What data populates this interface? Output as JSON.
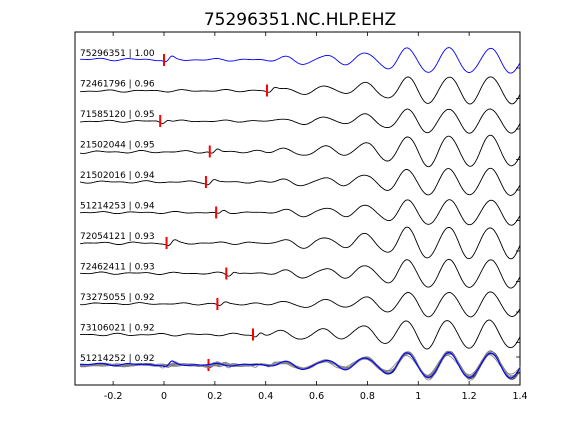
{
  "chart_data": {
    "type": "line",
    "title": "75296351.NC.HLP.EHZ",
    "xlabel": "",
    "ylabel": "",
    "xlim": [
      -0.35,
      1.4
    ],
    "xticks": [
      -0.2,
      0,
      0.2,
      0.4,
      0.6,
      0.8,
      1,
      1.2,
      1.4
    ],
    "xtick_labels": [
      "-0.2",
      "0",
      "0.2",
      "0.4",
      "0.6",
      "0.8",
      "1",
      "1.2",
      "1.4"
    ],
    "grid": false,
    "legend": "none",
    "reference_color": "#0000ff",
    "trace_color": "#000000",
    "pick_color": "#ff0000",
    "stack_gray_color": "#808080",
    "traces": [
      {
        "label": "75296351 | 1.00",
        "pick_time": 0.0,
        "reference": true
      },
      {
        "label": "72461796 | 0.96",
        "pick_time": 0.405
      },
      {
        "label": "71585120 | 0.95",
        "pick_time": -0.015
      },
      {
        "label": "21502044 | 0.95",
        "pick_time": 0.18
      },
      {
        "label": "21502016 | 0.94",
        "pick_time": 0.165
      },
      {
        "label": "51214253 | 0.94",
        "pick_time": 0.205
      },
      {
        "label": "72054121 | 0.93",
        "pick_time": 0.01
      },
      {
        "label": "72462411 | 0.93",
        "pick_time": 0.245
      },
      {
        "label": "73275055 | 0.92",
        "pick_time": 0.21
      },
      {
        "label": "73106021 | 0.92",
        "pick_time": 0.35
      },
      {
        "label": "51214252 | 0.92",
        "pick_time": 0.175
      }
    ],
    "stack_panel": {
      "label": "overlay of aligned traces"
    }
  }
}
